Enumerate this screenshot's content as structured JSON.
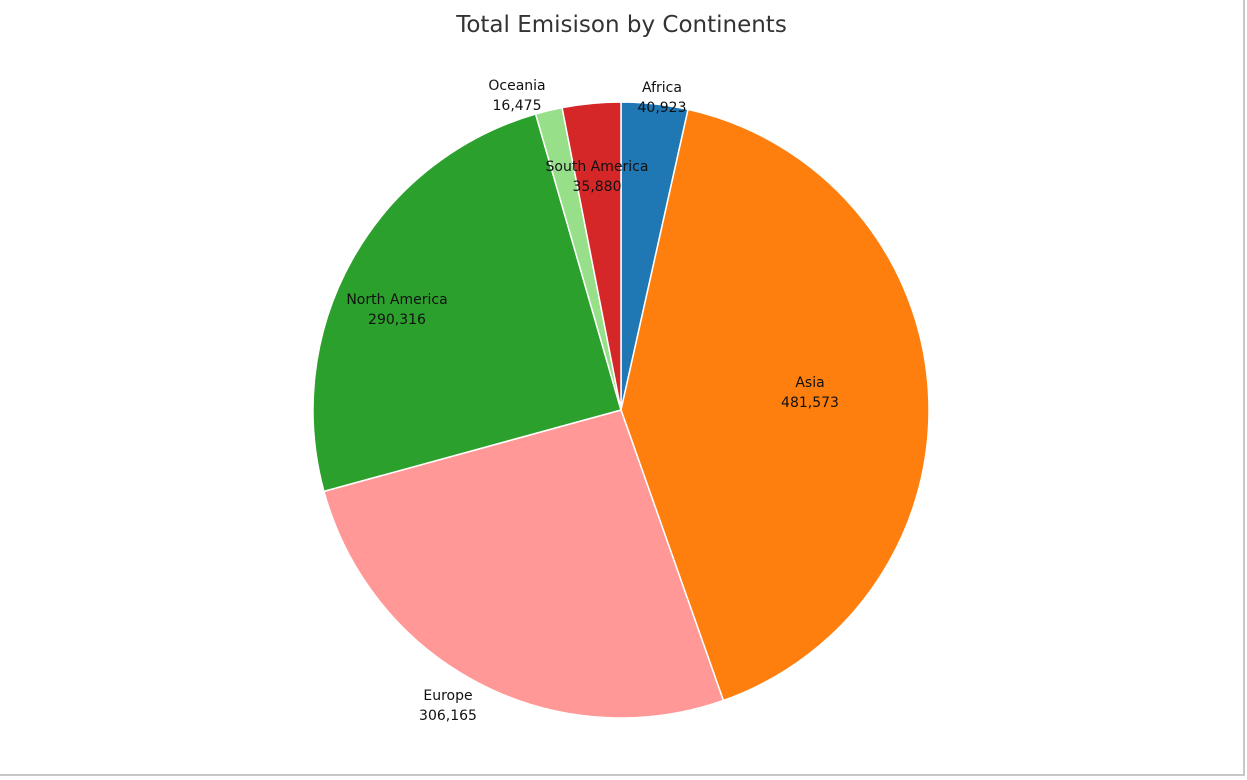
{
  "chart_data": {
    "type": "pie",
    "title": "Total Emisison by Continents",
    "slices": [
      {
        "label": "Africa",
        "value": 40923,
        "display": "40,923",
        "color": "#1f77b4"
      },
      {
        "label": "Asia",
        "value": 481573,
        "display": "481,573",
        "color": "#ff7f0e"
      },
      {
        "label": "Europe",
        "value": 306165,
        "display": "306,165",
        "color": "#ff9896"
      },
      {
        "label": "North America",
        "value": 290316,
        "display": "290,316",
        "color": "#2ca02c"
      },
      {
        "label": "Oceania",
        "value": 16475,
        "display": "16,475",
        "color": "#98df8a"
      },
      {
        "label": "South America",
        "value": 35880,
        "display": "35,880",
        "color": "#d62728"
      }
    ],
    "start_angle": "12 o'clock",
    "direction": "clockwise",
    "legend": "none"
  }
}
